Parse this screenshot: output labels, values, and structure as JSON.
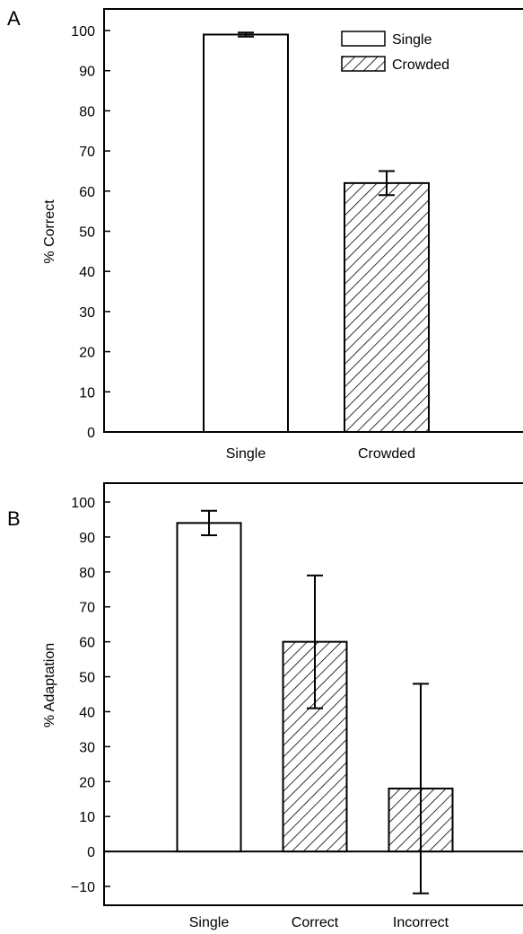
{
  "chart_data": [
    {
      "type": "bar",
      "panel_label": "A",
      "ylabel": "% Correct",
      "xlabel": "",
      "ylim": [
        0,
        100
      ],
      "yticks": [
        0,
        10,
        20,
        30,
        40,
        50,
        60,
        70,
        80,
        90,
        100
      ],
      "categories": [
        "Single",
        "Crowded"
      ],
      "values": [
        99,
        62
      ],
      "errors": [
        0.5,
        3
      ],
      "fills": [
        "plain",
        "hatched"
      ],
      "legend": {
        "position": "top-right",
        "entries": [
          {
            "label": "Single",
            "fill": "plain"
          },
          {
            "label": "Crowded",
            "fill": "hatched"
          }
        ]
      }
    },
    {
      "type": "bar",
      "panel_label": "B",
      "ylabel": "% Adaptation",
      "xlabel": "",
      "ylim": [
        -15,
        105
      ],
      "yticks": [
        -10,
        0,
        10,
        20,
        30,
        40,
        50,
        60,
        70,
        80,
        90,
        100
      ],
      "categories": [
        "Single",
        "Correct",
        "Incorrect"
      ],
      "values": [
        94,
        60,
        18
      ],
      "errors": [
        3.5,
        19,
        30
      ],
      "fills": [
        "plain",
        "hatched",
        "hatched"
      ],
      "zero_line": true
    }
  ]
}
